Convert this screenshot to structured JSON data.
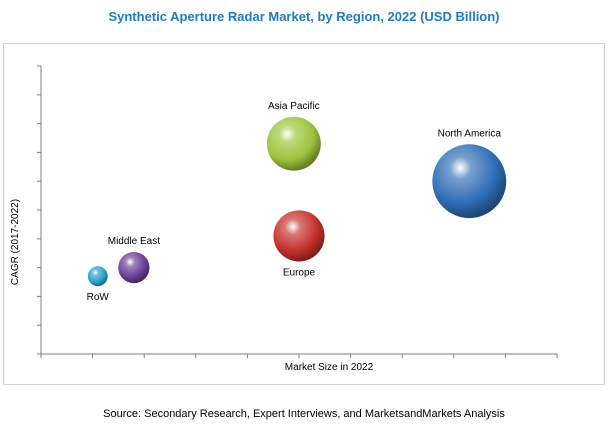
{
  "header": {
    "title": "Synthetic Aperture Radar Market, by Region, 2022 (USD Billion)"
  },
  "footer": {
    "source": "Source: Secondary Research, Expert Interviews, and MarketsandMarkets Analysis"
  },
  "chart_data": {
    "type": "scatter",
    "title": "Synthetic Aperture Radar Market, by Region, 2022 (USD Billion)",
    "xlabel": "Market Size in 2022",
    "ylabel": "CAGR (2017-2022)",
    "xlim": [
      0,
      10
    ],
    "ylim": [
      0,
      10
    ],
    "grid": false,
    "points": [
      {
        "label": "North America",
        "x": 8.3,
        "y": 6.0,
        "size": 2.6,
        "color": "#2e6db5",
        "label_pos": "above"
      },
      {
        "label": "Asia Pacific",
        "x": 4.9,
        "y": 7.3,
        "size": 1.9,
        "color": "#9bc43a",
        "label_pos": "above"
      },
      {
        "label": "Europe",
        "x": 5.0,
        "y": 4.1,
        "size": 1.8,
        "color": "#c4302c",
        "label_pos": "below"
      },
      {
        "label": "Middle East",
        "x": 1.8,
        "y": 3.0,
        "size": 1.1,
        "color": "#6a3e95",
        "label_pos": "above"
      },
      {
        "label": "RoW",
        "x": 1.1,
        "y": 2.7,
        "size": 0.7,
        "color": "#2a9fc9",
        "label_pos": "below"
      }
    ]
  }
}
